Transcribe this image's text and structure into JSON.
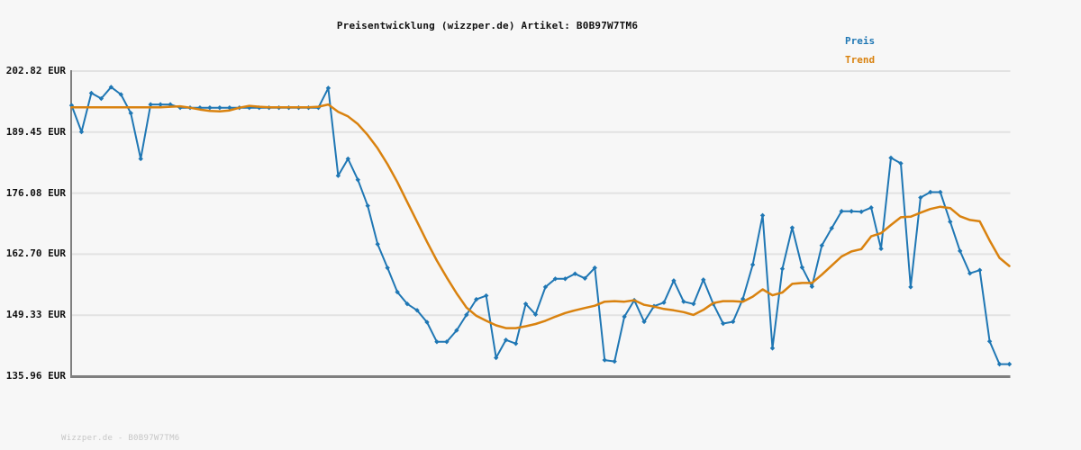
{
  "header": {
    "title": "Preisentwicklung (wizzper.de) Artikel: B0B97W7TM6"
  },
  "legend": [
    {
      "label": "Preis",
      "color": "#1f77b4"
    },
    {
      "label": "Trend",
      "color": "#d9820f"
    }
  ],
  "footer": {
    "watermark": "Wizzper.de - B0B97W7TM6"
  },
  "colors": {
    "background": "#f7f7f7",
    "grid": "#e2e2e2",
    "axis": "#7f7f7f",
    "price": "#1f77b4",
    "trend": "#d9820f"
  },
  "chart_data": {
    "type": "line",
    "title": "Preisentwicklung (wizzper.de) Artikel: B0B97W7TM6",
    "currency": "EUR",
    "ylim": [
      135.96,
      202.82
    ],
    "yticks": [
      {
        "label": "202.82 EUR",
        "value": 202.82
      },
      {
        "label": "189.45 EUR",
        "value": 189.45
      },
      {
        "label": "176.08 EUR",
        "value": 176.08
      },
      {
        "label": "162.70 EUR",
        "value": 162.7
      },
      {
        "label": "149.33 EUR",
        "value": 149.33
      },
      {
        "label": "135.96 EUR",
        "value": 135.96
      }
    ],
    "x_axis": {
      "tick_labels_visible": false,
      "points": 96
    },
    "legend_position": "top-right",
    "grid": true,
    "series": [
      {
        "name": "Preis",
        "color": "#1f77b4",
        "markers": true,
        "values": [
          195.3,
          189.5,
          198.0,
          196.8,
          199.3,
          197.7,
          193.6,
          183.6,
          195.5,
          195.5,
          195.5,
          194.8,
          194.8,
          194.8,
          194.8,
          194.8,
          194.8,
          194.8,
          194.8,
          194.8,
          194.8,
          194.8,
          194.8,
          194.8,
          194.8,
          194.8,
          199.1,
          179.9,
          183.6,
          179.0,
          173.3,
          164.9,
          159.7,
          154.4,
          151.8,
          150.4,
          147.8,
          143.5,
          143.5,
          146.0,
          149.4,
          152.8,
          153.6,
          140.0,
          143.9,
          143.1,
          151.8,
          149.5,
          155.5,
          157.3,
          157.3,
          158.4,
          157.4,
          159.7,
          139.5,
          139.2,
          149.0,
          152.6,
          147.9,
          151.3,
          152.1,
          156.9,
          152.3,
          151.8,
          157.1,
          151.8,
          147.5,
          147.9,
          152.9,
          160.4,
          171.2,
          142.1,
          159.5,
          168.5,
          159.8,
          155.6,
          164.6,
          168.4,
          172.1,
          172.1,
          172.0,
          172.9,
          163.9,
          183.8,
          182.6,
          155.5,
          175.1,
          176.3,
          176.3,
          169.8,
          163.4,
          158.5,
          159.2,
          143.6,
          138.6,
          138.6
        ]
      },
      {
        "name": "Trend",
        "color": "#d9820f",
        "markers": false,
        "values": [
          194.9,
          194.9,
          194.9,
          194.9,
          194.9,
          194.9,
          194.9,
          194.9,
          194.9,
          194.9,
          195.0,
          195.1,
          194.8,
          194.4,
          194.1,
          194.0,
          194.2,
          194.8,
          195.2,
          195.0,
          194.9,
          194.9,
          194.9,
          194.9,
          194.9,
          195.0,
          195.5,
          193.9,
          192.9,
          191.2,
          188.8,
          185.9,
          182.4,
          178.5,
          174.1,
          169.8,
          165.4,
          161.3,
          157.6,
          154.1,
          151.0,
          149.2,
          148.1,
          147.1,
          146.5,
          146.5,
          146.9,
          147.4,
          148.1,
          149.0,
          149.8,
          150.4,
          150.9,
          151.4,
          152.3,
          152.4,
          152.3,
          152.6,
          151.6,
          151.2,
          150.7,
          150.4,
          150.0,
          149.4,
          150.5,
          152.0,
          152.4,
          152.4,
          152.3,
          153.4,
          155.0,
          153.7,
          154.3,
          156.2,
          156.4,
          156.4,
          158.2,
          160.2,
          162.2,
          163.3,
          163.8,
          166.6,
          167.3,
          169.1,
          170.8,
          170.9,
          171.8,
          172.6,
          173.1,
          172.8,
          171.0,
          170.2,
          169.9,
          165.7,
          161.9,
          160.1
        ]
      }
    ]
  }
}
